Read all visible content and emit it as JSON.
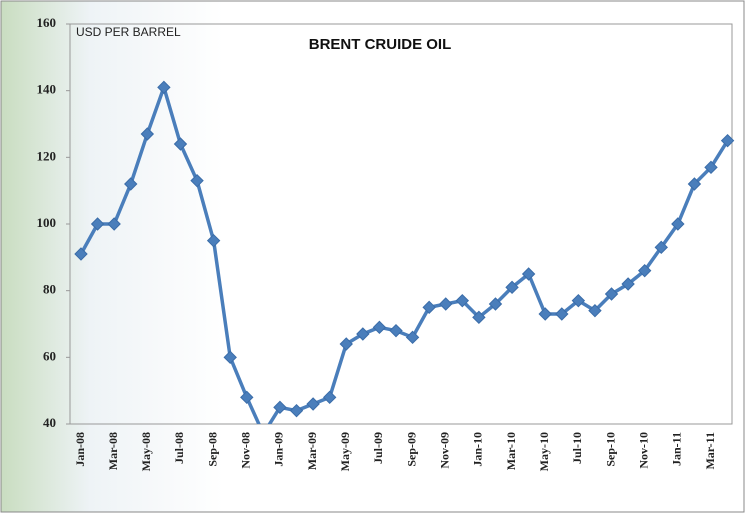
{
  "chart_data": {
    "type": "line",
    "title": "BRENT CRUIDE OIL",
    "annotation": "USD PER BARREL",
    "categories": [
      "Jan-08",
      null,
      "Mar-08",
      null,
      "May-08",
      null,
      "Jul-08",
      null,
      "Sep-08",
      null,
      "Nov-08",
      null,
      "Jan-09",
      null,
      "Mar-09",
      null,
      "May-09",
      null,
      "Jul-09",
      null,
      "Sep-09",
      null,
      "Nov-09",
      null,
      "Jan-10",
      null,
      "Mar-10",
      null,
      "May-10",
      null,
      "Jul-10",
      null,
      "Sep-10",
      null,
      "Nov-10",
      null,
      "Jan-11",
      null,
      "Mar-11",
      null
    ],
    "series": [
      {
        "name": "Brent",
        "color": "#4a7ebb",
        "values": [
          91,
          100,
          100,
          112,
          127,
          141,
          124,
          113,
          95,
          60,
          48,
          37,
          45,
          44,
          46,
          48,
          64,
          67,
          69,
          68,
          66,
          75,
          76,
          77,
          72,
          76,
          81,
          85,
          73,
          73,
          77,
          74,
          79,
          82,
          86,
          93,
          100,
          112,
          117,
          125
        ]
      }
    ],
    "ylim": [
      40,
      160
    ],
    "yticks": [
      40,
      60,
      80,
      100,
      120,
      140,
      160
    ],
    "grid": false
  }
}
